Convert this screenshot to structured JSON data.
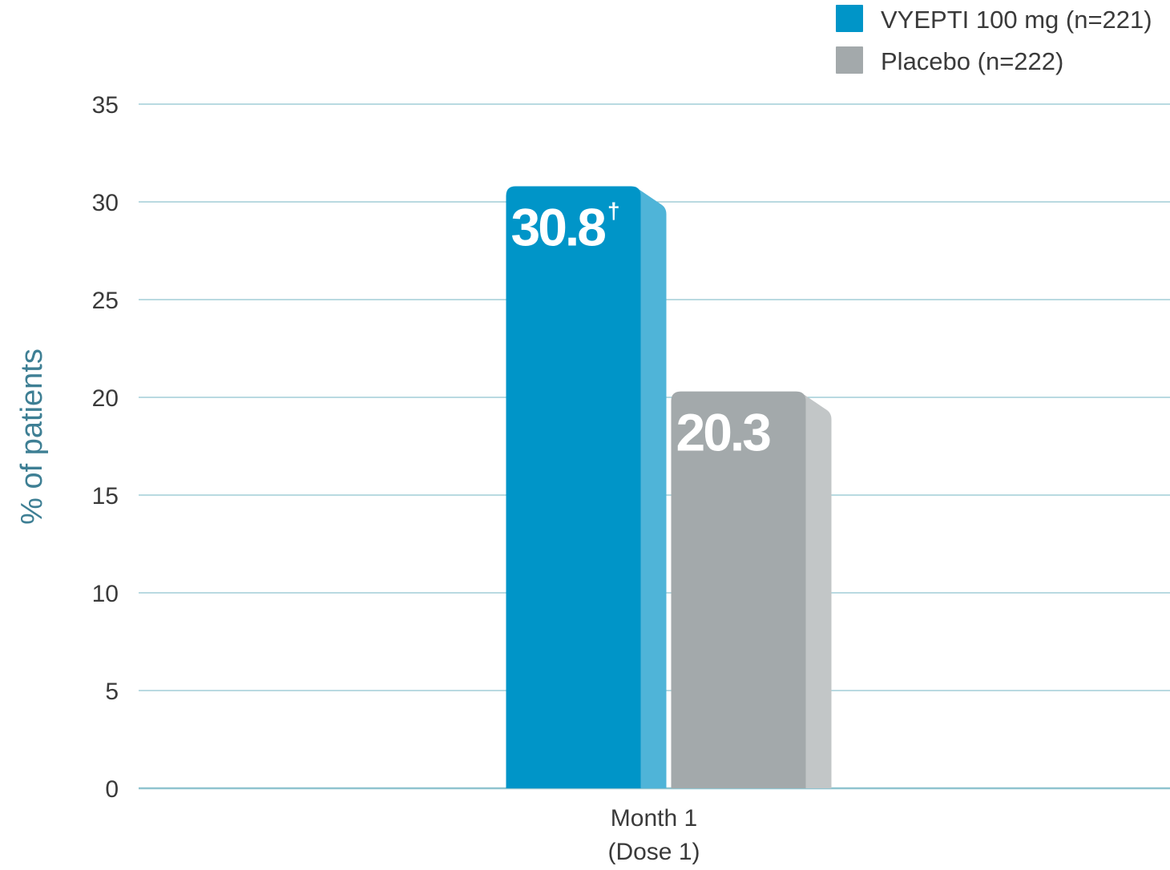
{
  "chart_data": {
    "type": "bar",
    "categories": [
      "Month 1 (Dose 1)"
    ],
    "category_lines": [
      "Month 1",
      "(Dose 1)"
    ],
    "series": [
      {
        "name": "VYEPTI 100 mg (n=221)",
        "values": [
          30.8
        ],
        "label": "30.8",
        "label_mark": "†",
        "color": "#0095c8",
        "side_color": "#4fb4d8"
      },
      {
        "name": "Placebo (n=222)",
        "values": [
          20.3
        ],
        "label": "20.3",
        "label_mark": "",
        "color": "#a3a9ab",
        "side_color": "#c2c6c7"
      }
    ],
    "ylabel": "% of patients",
    "xlabel": "",
    "ylim": [
      0,
      35
    ],
    "yticks": [
      0,
      5,
      10,
      15,
      20,
      25,
      30,
      35
    ],
    "grid": true,
    "grid_color": "#8fc3cf",
    "legend_position": "top-right"
  }
}
